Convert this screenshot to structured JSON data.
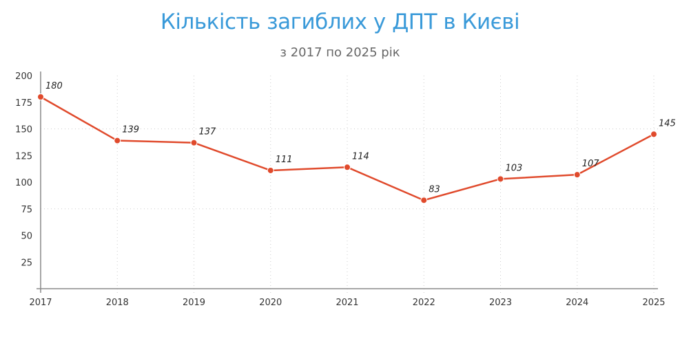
{
  "header": {
    "title": "Кількість загиблих у ДПТ в Києві",
    "subtitle": "з 2017 по 2025 рік"
  },
  "colors": {
    "title": "#3a9ad9",
    "subtitle": "#666666",
    "line": "#e04a2c",
    "grid": "#cccccc",
    "axis": "#888888"
  },
  "chart_data": {
    "type": "line",
    "title": "Кількість загиблих у ДПТ в Києві",
    "subtitle": "з 2017 по 2025 рік",
    "xlabel": "",
    "ylabel": "",
    "categories": [
      "2017",
      "2018",
      "2019",
      "2020",
      "2021",
      "2022",
      "2023",
      "2024",
      "2025"
    ],
    "values": [
      180,
      139,
      137,
      111,
      114,
      83,
      103,
      107,
      145
    ],
    "ylim": [
      0,
      200
    ],
    "yticks": [
      25,
      50,
      75,
      100,
      125,
      150,
      175,
      200
    ],
    "horizontal_gridlines": [
      75,
      150
    ],
    "vertical_gridlines": true,
    "data_labels": true,
    "legend": null
  }
}
